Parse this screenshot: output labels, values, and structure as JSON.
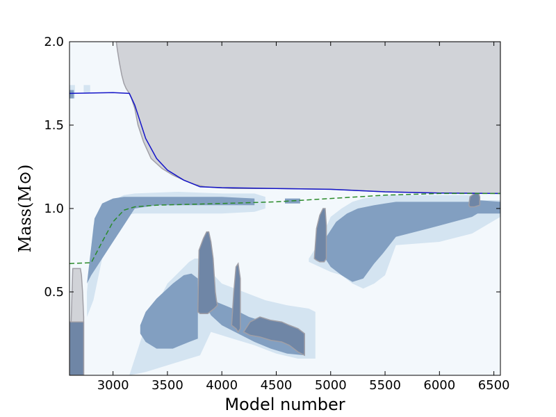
{
  "chart_data": {
    "type": "area",
    "xlabel": "Model number",
    "ylabel": "Mass(M⊙)",
    "xlim": [
      2600,
      6560
    ],
    "ylim": [
      0,
      2.0
    ],
    "x_ticks": [
      3000,
      3500,
      4000,
      4500,
      5000,
      5500,
      6000,
      6500
    ],
    "x_tick_labels": [
      "3000",
      "3500",
      "4000",
      "4500",
      "5000",
      "5500",
      "6000",
      "6500"
    ],
    "y_ticks": [
      0.5,
      1.0,
      1.5,
      2.0
    ],
    "y_tick_labels": [
      "0.5",
      "1.0",
      "1.5",
      "2.0"
    ],
    "grid": false,
    "colors": {
      "background": "#f3f8fc",
      "light_zone": "#d4e4f1",
      "dark_zone": "#829fc1",
      "convective_zone": "#6f86a6",
      "grey_zone": "#d1d3d8",
      "zone_outline": "#a09fa6",
      "solid_line": "#1414c8",
      "dashed_line": "#2a8a2a"
    },
    "series": [
      {
        "style": "solid",
        "x": [
          2600,
          3000,
          3150,
          3200,
          3300,
          3400,
          3500,
          3650,
          3800,
          4000,
          4500,
          5000,
          5500,
          6000,
          6560
        ],
        "y": [
          1.69,
          1.695,
          1.69,
          1.62,
          1.42,
          1.3,
          1.23,
          1.17,
          1.13,
          1.125,
          1.12,
          1.115,
          1.1,
          1.093,
          1.09
        ]
      },
      {
        "style": "dashed",
        "x": [
          2600,
          2800,
          2900,
          3000,
          3100,
          3200,
          3400,
          3700,
          4000,
          4500,
          5000,
          5500,
          6000,
          6560
        ],
        "y": [
          0.67,
          0.675,
          0.8,
          0.92,
          0.99,
          1.01,
          1.02,
          1.025,
          1.03,
          1.04,
          1.06,
          1.08,
          1.09,
          1.09
        ]
      }
    ],
    "regions": [
      {
        "kind": "light",
        "x": [
          2760,
          2820,
          2900,
          3000,
          3100,
          3200,
          3600,
          3800,
          4000,
          4300,
          4400,
          4400,
          4300,
          4000,
          3800,
          3600,
          3200,
          3100,
          3000,
          2900,
          2820,
          2760
        ],
        "y": [
          0.5,
          0.9,
          1.01,
          1.05,
          1.08,
          1.09,
          1.1,
          1.095,
          1.09,
          1.09,
          1.07,
          1.0,
          0.98,
          0.97,
          0.97,
          0.97,
          0.97,
          0.96,
          0.9,
          0.7,
          0.45,
          0.35
        ]
      },
      {
        "kind": "dark",
        "x": [
          2760,
          2830,
          2900,
          3000,
          3100,
          3200,
          3400,
          3600,
          3800,
          4000,
          4300,
          4300,
          4000,
          3800,
          3600,
          3400,
          3200,
          3100,
          3000,
          2900,
          2800
        ],
        "y": [
          0.55,
          0.94,
          1.03,
          1.06,
          1.07,
          1.07,
          1.07,
          1.07,
          1.07,
          1.07,
          1.06,
          1.02,
          1.02,
          1.02,
          1.02,
          1.02,
          1.0,
          0.9,
          0.8,
          0.7,
          0.6
        ]
      },
      {
        "kind": "light",
        "x": [
          3150,
          3300,
          3500,
          3700,
          3750,
          3800,
          3900,
          4000,
          4200,
          4400,
          4600,
          4800,
          4860,
          4860,
          4700,
          4500,
          4300,
          4100,
          3900,
          3800,
          3600,
          3300,
          3150
        ],
        "y": [
          0.0,
          0.3,
          0.55,
          0.68,
          0.7,
          0.7,
          0.62,
          0.55,
          0.5,
          0.45,
          0.42,
          0.4,
          0.38,
          0.1,
          0.1,
          0.13,
          0.18,
          0.22,
          0.26,
          0.12,
          0.08,
          0.02,
          0.0
        ]
      },
      {
        "kind": "dark",
        "x": [
          3250,
          3300,
          3400,
          3550,
          3650,
          3720,
          3780,
          3780,
          3700,
          3550,
          3400,
          3300,
          3250
        ],
        "y": [
          0.3,
          0.38,
          0.46,
          0.55,
          0.6,
          0.61,
          0.58,
          0.22,
          0.2,
          0.16,
          0.16,
          0.2,
          0.25
        ]
      },
      {
        "kind": "dark",
        "x": [
          3850,
          3950,
          4100,
          4250,
          4400,
          4550,
          4700,
          4760,
          4760,
          4600,
          4450,
          4300,
          4150,
          4000,
          3900
        ],
        "y": [
          0.42,
          0.44,
          0.4,
          0.35,
          0.32,
          0.3,
          0.28,
          0.25,
          0.12,
          0.13,
          0.16,
          0.2,
          0.25,
          0.3,
          0.36
        ]
      },
      {
        "kind": "light",
        "x": [
          4800,
          4900,
          5000,
          5100,
          5200,
          5300,
          5400,
          5500,
          6000,
          6300,
          6350,
          6560,
          6560,
          6300,
          6000,
          5600,
          5500,
          5400,
          5300,
          5200,
          5100,
          5000,
          4900,
          4800
        ],
        "y": [
          0.7,
          0.8,
          0.95,
          1.0,
          1.04,
          1.06,
          1.07,
          1.08,
          1.08,
          1.08,
          1.05,
          1.05,
          0.95,
          0.85,
          0.8,
          0.78,
          0.6,
          0.55,
          0.52,
          0.55,
          0.6,
          0.62,
          0.65,
          0.68
        ]
      },
      {
        "kind": "dark",
        "x": [
          4860,
          4950,
          5050,
          5150,
          5250,
          5400,
          5500,
          5600,
          6000,
          6300,
          6350,
          6560,
          6560,
          6350,
          6300,
          5900,
          5600,
          5480,
          5400,
          5300,
          5200,
          5100,
          5000,
          4950,
          4860
        ],
        "y": [
          0.72,
          0.82,
          0.92,
          0.97,
          1.0,
          1.02,
          1.03,
          1.04,
          1.04,
          1.04,
          1.05,
          1.04,
          0.97,
          0.97,
          0.95,
          0.88,
          0.83,
          0.73,
          0.67,
          0.58,
          0.56,
          0.6,
          0.65,
          0.7,
          0.72
        ]
      },
      {
        "kind": "light",
        "x": [
          2600,
          2650,
          2650,
          2600
        ],
        "y": [
          1.66,
          1.66,
          1.74,
          1.74
        ]
      },
      {
        "kind": "dark",
        "x": [
          2600,
          2640,
          2640,
          2600
        ],
        "y": [
          1.66,
          1.66,
          1.71,
          1.71
        ]
      },
      {
        "kind": "light",
        "x": [
          2730,
          2790,
          2790,
          2730
        ],
        "y": [
          1.69,
          1.69,
          1.74,
          1.74
        ]
      },
      {
        "kind": "dark",
        "x": [
          4580,
          4720,
          4720,
          4580
        ],
        "y": [
          1.03,
          1.03,
          1.06,
          1.06
        ]
      },
      {
        "kind": "conv",
        "x": [
          3780,
          3790,
          3830,
          3860,
          3880,
          3900,
          3920,
          3940,
          3950,
          3960,
          3930,
          3870,
          3800,
          3780
        ],
        "y": [
          0.38,
          0.75,
          0.82,
          0.86,
          0.86,
          0.8,
          0.7,
          0.5,
          0.45,
          0.42,
          0.4,
          0.37,
          0.37,
          0.38
        ]
      },
      {
        "kind": "conv",
        "x": [
          4090,
          4110,
          4130,
          4150,
          4170,
          4170,
          4150,
          4130,
          4110
        ],
        "y": [
          0.3,
          0.5,
          0.65,
          0.67,
          0.58,
          0.28,
          0.26,
          0.28,
          0.29
        ]
      },
      {
        "kind": "conv",
        "x": [
          4850,
          4870,
          4900,
          4930,
          4950,
          4960,
          4960,
          4940,
          4900,
          4870
        ],
        "y": [
          0.7,
          0.88,
          0.96,
          1.0,
          1.0,
          0.9,
          0.7,
          0.68,
          0.68,
          0.69
        ]
      },
      {
        "kind": "conv",
        "x": [
          6270,
          6280,
          6320,
          6360,
          6370,
          6370,
          6320,
          6280,
          6270
        ],
        "y": [
          1.02,
          1.07,
          1.09,
          1.09,
          1.07,
          1.02,
          1.01,
          1.01,
          1.02
        ]
      },
      {
        "kind": "grey",
        "x": [
          2600,
          2630,
          2700,
          2710,
          2720,
          2730,
          2730,
          2600
        ],
        "y": [
          0.0,
          0.64,
          0.64,
          0.6,
          0.5,
          0.35,
          0.0,
          0.0
        ]
      },
      {
        "kind": "conv",
        "x": [
          2600,
          2700,
          2730,
          2730,
          2600
        ],
        "y": [
          0.0,
          0.0,
          0.0,
          0.32,
          0.32
        ]
      },
      {
        "kind": "grey",
        "x": [
          3030,
          3040,
          3060,
          3080,
          3100,
          3120,
          3150,
          3170,
          3200,
          3230,
          3280,
          3350,
          3450,
          3550,
          3650,
          3750,
          3850,
          3950,
          4100,
          4500,
          5000,
          5500,
          6000,
          6560,
          6560,
          3030
        ],
        "y": [
          2.0,
          1.95,
          1.87,
          1.8,
          1.75,
          1.72,
          1.69,
          1.66,
          1.6,
          1.5,
          1.4,
          1.3,
          1.24,
          1.2,
          1.17,
          1.145,
          1.13,
          1.125,
          1.12,
          1.12,
          1.115,
          1.1,
          1.093,
          1.09,
          2.0,
          2.0
        ]
      },
      {
        "kind": "conv",
        "x": [
          4200,
          4260,
          4350,
          4450,
          4550,
          4620,
          4700,
          4760,
          4760,
          4700,
          4620,
          4550,
          4450,
          4350,
          4260,
          4200
        ],
        "y": [
          0.26,
          0.32,
          0.35,
          0.33,
          0.32,
          0.3,
          0.28,
          0.25,
          0.12,
          0.14,
          0.18,
          0.2,
          0.21,
          0.23,
          0.24,
          0.26
        ]
      }
    ]
  }
}
